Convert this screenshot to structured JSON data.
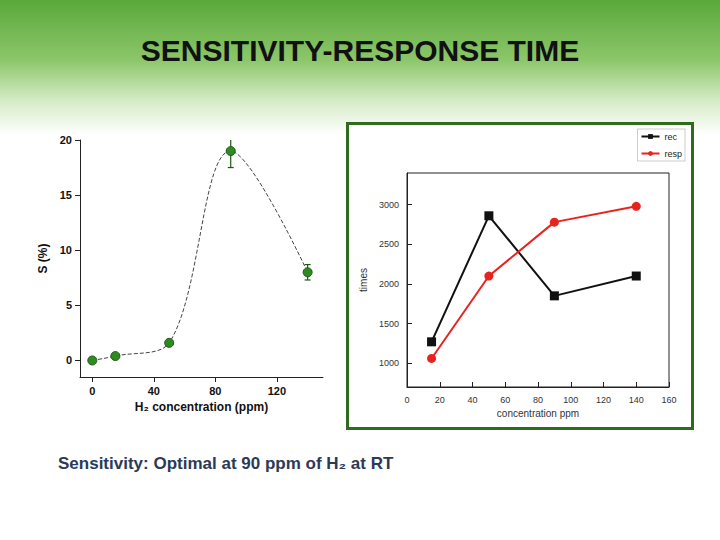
{
  "title": "SENSITIVITY-RESPONSE TIME",
  "caption": "Sensitivity: Optimal at 90 ppm of H₂ at RT",
  "chart_data": [
    {
      "type": "line",
      "xlabel": "H₂ concentration (ppm)",
      "ylabel": "S (%)",
      "x": [
        0,
        15,
        50,
        90,
        140
      ],
      "series": [
        {
          "name": "Sensitivity",
          "color": "#2e8b22",
          "marker": "circle",
          "line_style": "dashed",
          "values": [
            0,
            0.4,
            1.6,
            19,
            8
          ],
          "errors": [
            null,
            null,
            null,
            1.5,
            0.7
          ]
        }
      ],
      "xlim": [
        -8,
        150
      ],
      "xticks": [
        0,
        40,
        80,
        120
      ],
      "ylim": [
        -1.5,
        20
      ],
      "yticks": [
        0,
        5,
        10,
        15,
        20
      ],
      "grid": false
    },
    {
      "type": "line",
      "xlabel": "concentration ppm",
      "ylabel": "times",
      "x": [
        15,
        50,
        90,
        140
      ],
      "series": [
        {
          "name": "rec",
          "color": "#111111",
          "marker": "square",
          "line_style": "solid",
          "values": [
            1270,
            2860,
            1850,
            2100
          ]
        },
        {
          "name": "resp",
          "color": "#e8231e",
          "marker": "circle",
          "line_style": "solid",
          "values": [
            1060,
            2100,
            2780,
            2980
          ]
        }
      ],
      "xlim": [
        0,
        160
      ],
      "xticks": [
        0,
        20,
        40,
        60,
        80,
        100,
        120,
        140,
        160
      ],
      "ylim": [
        700,
        3400
      ],
      "yticks": [
        1000,
        1500,
        2000,
        2500,
        3000
      ],
      "legend": "top-right",
      "grid": false
    }
  ]
}
